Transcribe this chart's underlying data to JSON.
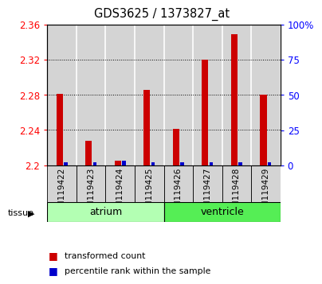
{
  "title": "GDS3625 / 1373827_at",
  "samples": [
    "GSM119422",
    "GSM119423",
    "GSM119424",
    "GSM119425",
    "GSM119426",
    "GSM119427",
    "GSM119428",
    "GSM119429"
  ],
  "red_values": [
    2.281,
    2.228,
    2.205,
    2.286,
    2.241,
    2.32,
    2.349,
    2.28
  ],
  "blue_percentile": [
    2,
    2,
    3,
    2,
    2,
    2,
    2,
    2
  ],
  "ylim": [
    2.2,
    2.36
  ],
  "yticks_left": [
    2.2,
    2.24,
    2.28,
    2.32,
    2.36
  ],
  "yticks_right": [
    0,
    25,
    50,
    75,
    100
  ],
  "ytick_labels_right": [
    "0",
    "25",
    "50",
    "75",
    "100%"
  ],
  "tissue_groups": [
    {
      "label": "atrium",
      "start": 0,
      "end": 4,
      "color": "#b3ffb3"
    },
    {
      "label": "ventricle",
      "start": 4,
      "end": 8,
      "color": "#55ee55"
    }
  ],
  "red_color": "#cc0000",
  "blue_color": "#0000cc",
  "legend_red": "transformed count",
  "legend_blue": "percentile rank within the sample",
  "sample_bg_color": "#d4d4d4",
  "baseline": 2.2
}
